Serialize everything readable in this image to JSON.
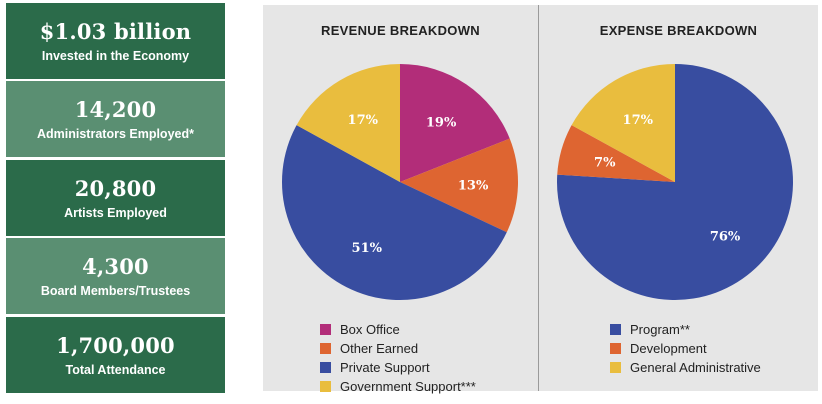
{
  "stats": [
    {
      "value": "$1.03 billion",
      "label": "Invested in the Economy"
    },
    {
      "value": "14,200",
      "label": "Administrators Employed*"
    },
    {
      "value": "20,800",
      "label": "Artists Employed"
    },
    {
      "value": "4,300",
      "label": "Board Members/Trustees"
    },
    {
      "value": "1,700,000",
      "label": "Total Attendance"
    }
  ],
  "colors": {
    "stat_dark": "#2b6b4a",
    "stat_light": "#5a8f72",
    "panel_bg": "#e6e6e6"
  },
  "chart_data": [
    {
      "type": "pie",
      "title": "REVENUE BREAKDOWN",
      "categories": [
        "Box Office",
        "Other Earned",
        "Private Support",
        "Government Support***"
      ],
      "values": [
        19,
        13,
        51,
        17
      ],
      "value_labels": [
        "19%",
        "13%",
        "51%",
        "17%"
      ],
      "colors": [
        "#b22d79",
        "#de6531",
        "#384da0",
        "#e9bd3e"
      ],
      "start": "12 o'clock, clockwise",
      "legend": "below"
    },
    {
      "type": "pie",
      "title": "EXPENSE BREAKDOWN",
      "categories": [
        "Program**",
        "Development",
        "General Administrative"
      ],
      "values": [
        76,
        7,
        17
      ],
      "value_labels": [
        "76%",
        "7%",
        "17%"
      ],
      "colors": [
        "#384da0",
        "#de6531",
        "#e9bd3e"
      ],
      "start": "12 o'clock, clockwise",
      "legend": "below"
    }
  ]
}
